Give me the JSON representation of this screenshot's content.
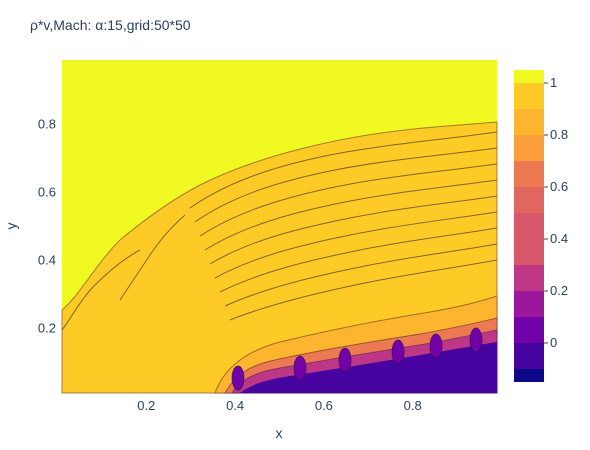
{
  "chart_data": {
    "type": "heatmap",
    "title": "ρ*v,Mach: α:15,grid:50*50",
    "xlabel": "x",
    "ylabel": "y",
    "xlim": [
      0.01,
      0.99
    ],
    "ylim": [
      0.01,
      0.99
    ],
    "x_ticks": [
      0.2,
      0.4,
      0.6,
      0.8
    ],
    "y_ticks": [
      0.2,
      0.4,
      0.6,
      0.8
    ],
    "colorbar": {
      "range": [
        -0.15,
        1.05
      ],
      "ticks": [
        0,
        0.2,
        0.4,
        0.6,
        0.8,
        1
      ],
      "levels": [
        {
          "from": -0.15,
          "to": -0.1,
          "color": "#0d0887"
        },
        {
          "from": -0.1,
          "to": 0.0,
          "color": "#46039f"
        },
        {
          "from": 0.0,
          "to": 0.1,
          "color": "#7201a8"
        },
        {
          "from": 0.1,
          "to": 0.2,
          "color": "#9c179e"
        },
        {
          "from": 0.2,
          "to": 0.3,
          "color": "#bd3786"
        },
        {
          "from": 0.3,
          "to": 0.4,
          "color": "#d8576b"
        },
        {
          "from": 0.4,
          "to": 0.5,
          "color": "#d8576b"
        },
        {
          "from": 0.5,
          "to": 0.6,
          "color": "#e06760"
        },
        {
          "from": 0.6,
          "to": 0.7,
          "color": "#ed7953"
        },
        {
          "from": 0.7,
          "to": 0.8,
          "color": "#fb9f3a"
        },
        {
          "from": 0.8,
          "to": 0.9,
          "color": "#fdb42f"
        },
        {
          "from": 0.9,
          "to": 1.0,
          "color": "#fdca26"
        },
        {
          "from": 1.0,
          "to": 1.05,
          "color": "#f0f921"
        }
      ]
    },
    "grid": false,
    "legend": "right"
  }
}
